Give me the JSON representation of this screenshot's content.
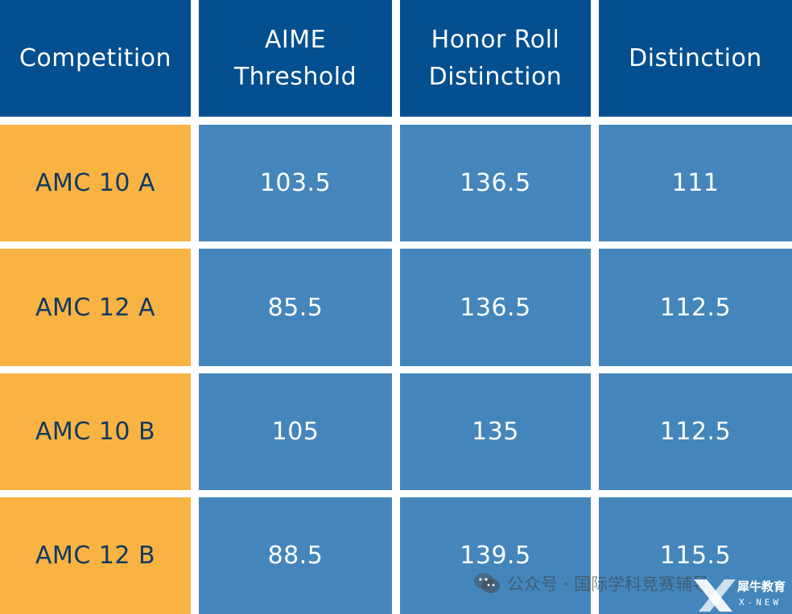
{
  "table": {
    "headers": [
      "Competition",
      "AIME\nThreshold",
      "Honor Roll\nDistinction",
      "Distinction"
    ],
    "rows": [
      [
        "AMC 10 A",
        "103.5",
        "136.5",
        "111"
      ],
      [
        "AMC 12 A",
        "85.5",
        "136.5",
        "112.5"
      ],
      [
        "AMC 10 B",
        "105",
        "135",
        "112.5"
      ],
      [
        "AMC 12 B",
        "88.5",
        "139.5",
        "115.5"
      ]
    ]
  },
  "watermark": {
    "text": "公众号 · 国际学科竞赛辅导",
    "icon": "wechat-icon"
  },
  "logo": {
    "text": "犀牛教育",
    "subtext": "X-NEW"
  },
  "colors": {
    "header_bg": "#034f90",
    "competition_bg": "#f9b342",
    "value_bg": "#4486bc",
    "competition_text": "#0f3b63"
  }
}
